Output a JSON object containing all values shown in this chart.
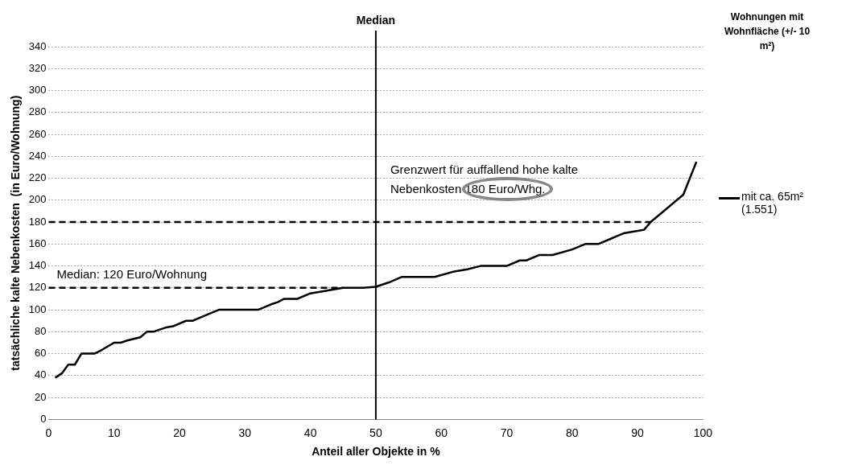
{
  "chart_data": {
    "type": "line",
    "xlabel": "Anteil aller Objekte in %",
    "ylabel": "tatsächliche kalte Nebenkosten  (in Euro/Wohnung)",
    "legend_title": "Wohnungen mit Wohnfläche (+/- 10 m²)",
    "series": [
      {
        "name": "mit ca. 65m² (1.551)",
        "color": "#000000",
        "x": [
          1,
          2,
          3,
          4,
          5,
          7,
          8,
          10,
          11,
          12,
          14,
          15,
          16,
          18,
          19,
          21,
          22,
          24,
          26,
          32,
          34,
          35,
          36,
          38,
          40,
          42,
          45,
          48,
          50,
          52,
          54,
          59,
          62,
          64,
          66,
          70,
          72,
          73,
          75,
          77,
          80,
          82,
          84,
          86,
          88,
          90,
          91,
          92,
          94,
          96,
          97,
          98,
          99
        ],
        "values": [
          38,
          42,
          50,
          50,
          60,
          60,
          63,
          70,
          70,
          72,
          75,
          80,
          80,
          84,
          85,
          90,
          90,
          95,
          100,
          100,
          105,
          107,
          110,
          110,
          115,
          117,
          120,
          120,
          121,
          125,
          130,
          130,
          135,
          137,
          140,
          140,
          145,
          145,
          150,
          150,
          155,
          160,
          160,
          165,
          170,
          172,
          173,
          180,
          190,
          200,
          205,
          220,
          235
        ]
      }
    ],
    "xlim": [
      0,
      100
    ],
    "xticks": [
      0,
      10,
      20,
      30,
      40,
      50,
      60,
      70,
      80,
      90,
      100
    ],
    "ylim": [
      0,
      340
    ],
    "yticks": [
      0,
      20,
      40,
      60,
      80,
      100,
      120,
      140,
      160,
      180,
      200,
      220,
      240,
      260,
      280,
      300,
      320,
      340
    ],
    "grid": "y",
    "legend": "right",
    "marker": "none",
    "line_style": "solid",
    "ref_lines": [
      {
        "axis": "x",
        "value": 50,
        "label": "Median",
        "color": "#000000",
        "line_style": "solid"
      },
      {
        "axis": "y",
        "value": 120,
        "label": "Median: 120 Euro/Wohnung",
        "color": "#000000",
        "line_style": "dashed"
      },
      {
        "axis": "y",
        "value": 180,
        "label": "Grenzwert für auffallend hohe kalte Nebenkosten 180 Euro/Whg.",
        "color": "#000000",
        "line_style": "dashed"
      }
    ]
  }
}
